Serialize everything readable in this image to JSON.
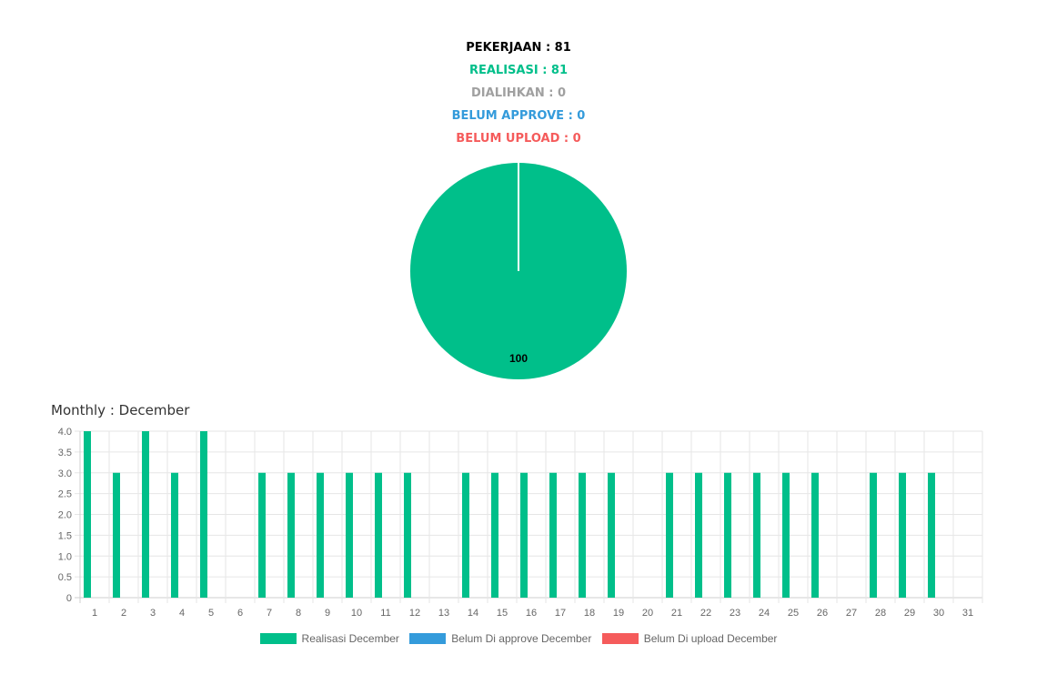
{
  "summary": {
    "pekerjaan": "PEKERJAAN : 81",
    "realisasi": "REALISASI : 81",
    "dialihkan": "DIALIHKAN : 0",
    "belum_approve": "BELUM APPROVE : 0",
    "belum_upload": "BELUM UPLOAD : 0"
  },
  "colors": {
    "black": "#000000",
    "green": "#00bf8a",
    "gray": "#a0a0a0",
    "blue": "#349bdb",
    "red": "#f55b5b"
  },
  "monthly_title": "Monthly : December",
  "chart_data": [
    {
      "type": "pie",
      "slices": [
        {
          "label": "Realisasi",
          "value": 100,
          "color": "#00bf8a"
        },
        {
          "label": "Dialihkan",
          "value": 0,
          "color": "#a0a0a0"
        },
        {
          "label": "Belum Approve",
          "value": 0,
          "color": "#349bdb"
        },
        {
          "label": "Belum Upload",
          "value": 0,
          "color": "#f55b5b"
        }
      ],
      "data_label": "100"
    },
    {
      "type": "bar",
      "categories": [
        "1",
        "2",
        "3",
        "4",
        "5",
        "6",
        "7",
        "8",
        "9",
        "10",
        "11",
        "12",
        "13",
        "14",
        "15",
        "16",
        "17",
        "18",
        "19",
        "20",
        "21",
        "22",
        "23",
        "24",
        "25",
        "26",
        "27",
        "28",
        "29",
        "30",
        "31"
      ],
      "series": [
        {
          "name": "Realisasi December",
          "color": "#00bf8a",
          "values": [
            4,
            3,
            4,
            3,
            4,
            0,
            3,
            3,
            3,
            3,
            3,
            3,
            0,
            3,
            3,
            3,
            3,
            3,
            3,
            0,
            3,
            3,
            3,
            3,
            3,
            3,
            0,
            3,
            3,
            3,
            0
          ]
        },
        {
          "name": "Belum Di approve December",
          "color": "#349bdb",
          "values": [
            0,
            0,
            0,
            0,
            0,
            0,
            0,
            0,
            0,
            0,
            0,
            0,
            0,
            0,
            0,
            0,
            0,
            0,
            0,
            0,
            0,
            0,
            0,
            0,
            0,
            0,
            0,
            0,
            0,
            0,
            0
          ]
        },
        {
          "name": "Belum Di upload December",
          "color": "#f55b5b",
          "values": [
            0,
            0,
            0,
            0,
            0,
            0,
            0,
            0,
            0,
            0,
            0,
            0,
            0,
            0,
            0,
            0,
            0,
            0,
            0,
            0,
            0,
            0,
            0,
            0,
            0,
            0,
            0,
            0,
            0,
            0,
            0
          ]
        }
      ],
      "ylim": [
        0,
        4
      ],
      "yticks": [
        "0",
        "0.5",
        "1.0",
        "1.5",
        "2.0",
        "2.5",
        "3.0",
        "3.5",
        "4.0"
      ],
      "grid": true,
      "legend": "bottom"
    }
  ]
}
